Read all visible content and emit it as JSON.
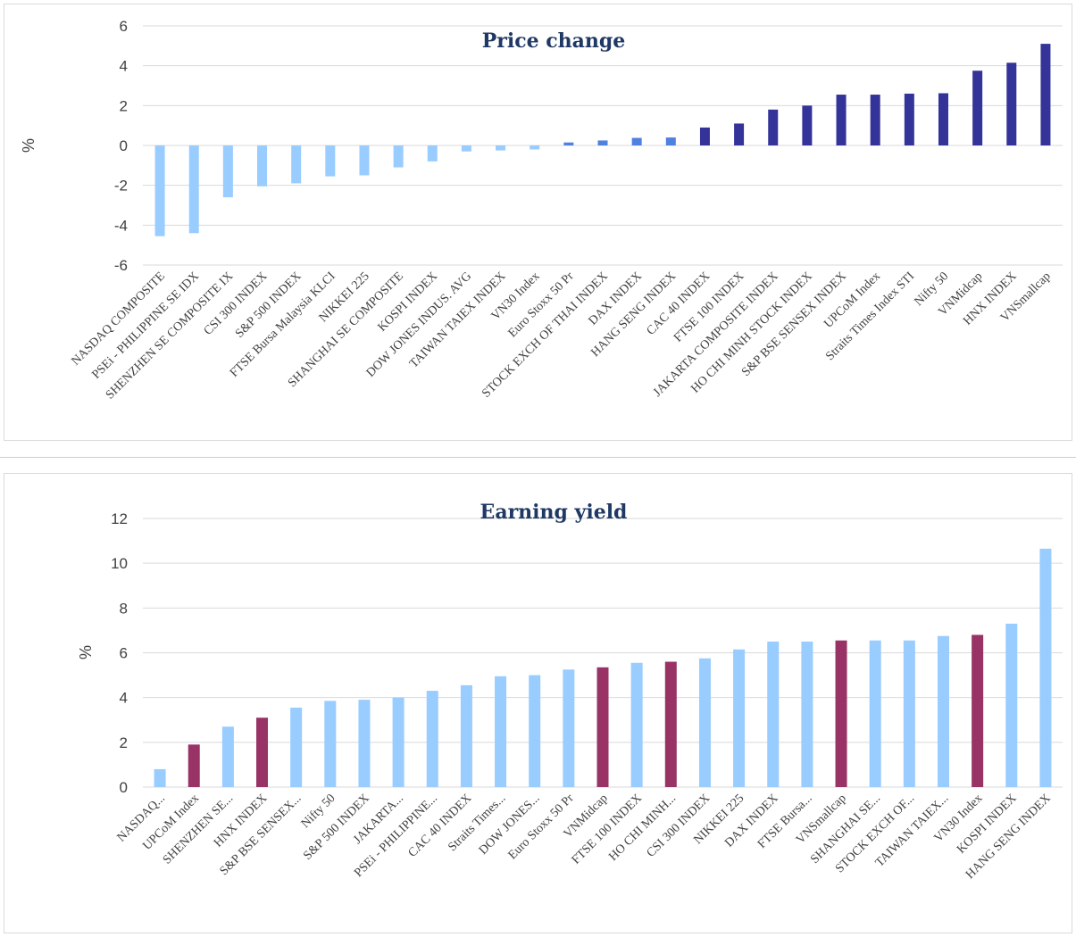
{
  "chart_data": [
    {
      "type": "bar",
      "title": "Price change",
      "ylabel": "%",
      "ylim": [
        -6,
        6
      ],
      "yticks": [
        -6,
        -4,
        -2,
        0,
        2,
        4,
        6
      ],
      "grid": true,
      "colors": {
        "negative": "#99ccff",
        "small_positive": "#4f81e0",
        "positive": "#333399"
      },
      "categories": [
        "NASDAQ COMPOSITE",
        "PSEi - PHILIPPINE SE IDX",
        "SHENZHEN SE COMPOSITE IX",
        "CSI 300 INDEX",
        "S&P 500 INDEX",
        "FTSE Bursa Malaysia KLCI",
        "NIKKEI 225",
        "SHANGHAI SE COMPOSITE",
        "KOSPI INDEX",
        "DOW JONES INDUS. AVG",
        "TAIWAN TAIEX INDEX",
        "VN30 Index",
        "Euro Stoxx 50 Pr",
        "STOCK EXCH OF THAI INDEX",
        "DAX INDEX",
        "HANG SENG INDEX",
        "CAC 40 INDEX",
        "FTSE 100 INDEX",
        "JAKARTA COMPOSITE INDEX",
        "HO CHI MINH STOCK INDEX",
        "S&P BSE SENSEX INDEX",
        "UPCoM Index",
        "Straits Times Index STI",
        "Nifty 50",
        "VNMidcap",
        "HNX INDEX",
        "VNSmallcap"
      ],
      "values": [
        -4.55,
        -4.4,
        -2.6,
        -2.05,
        -1.9,
        -1.55,
        -1.5,
        -1.1,
        -0.8,
        -0.3,
        -0.25,
        -0.2,
        0.15,
        0.25,
        0.38,
        0.4,
        0.9,
        1.1,
        1.8,
        2.0,
        2.55,
        2.55,
        2.6,
        2.62,
        3.75,
        4.15,
        5.1
      ]
    },
    {
      "type": "bar",
      "title": "Earning yield",
      "ylabel": "%",
      "ylim": [
        0,
        12
      ],
      "yticks": [
        0,
        2,
        4,
        6,
        8,
        10,
        12
      ],
      "grid": true,
      "colors": {
        "default": "#99ccff",
        "vietnam": "#993366"
      },
      "categories": [
        "NASDAQ...",
        "UPCoM Index",
        "SHENZHEN SE...",
        "HNX INDEX",
        "S&P BSE SENSEX...",
        "Nifty 50",
        "S&P 500 INDEX",
        "JAKARTA...",
        "PSEi - PHILIPPINE...",
        "CAC 40 INDEX",
        "Straits Times...",
        "DOW JONES...",
        "Euro Stoxx 50 Pr",
        "VNMidcap",
        "FTSE 100 INDEX",
        "HO CHI MINH...",
        "CSI 300 INDEX",
        "NIKKEI 225",
        "DAX INDEX",
        "FTSE Bursa...",
        "VNSmallcap",
        "SHANGHAI SE...",
        "STOCK EXCH OF...",
        "TAIWAN TAIEX...",
        "VN30 Index",
        "KOSPI INDEX",
        "HANG SENG INDEX"
      ],
      "values": [
        0.8,
        1.9,
        2.7,
        3.1,
        3.55,
        3.85,
        3.9,
        4.0,
        4.3,
        4.55,
        4.95,
        5.0,
        5.25,
        5.35,
        5.55,
        5.6,
        5.75,
        6.15,
        6.5,
        6.5,
        6.55,
        6.55,
        6.55,
        6.75,
        6.8,
        7.3,
        10.65
      ],
      "highlight": [
        false,
        true,
        false,
        true,
        false,
        false,
        false,
        false,
        false,
        false,
        false,
        false,
        false,
        true,
        false,
        true,
        false,
        false,
        false,
        false,
        true,
        false,
        false,
        false,
        true,
        false,
        false
      ]
    }
  ]
}
